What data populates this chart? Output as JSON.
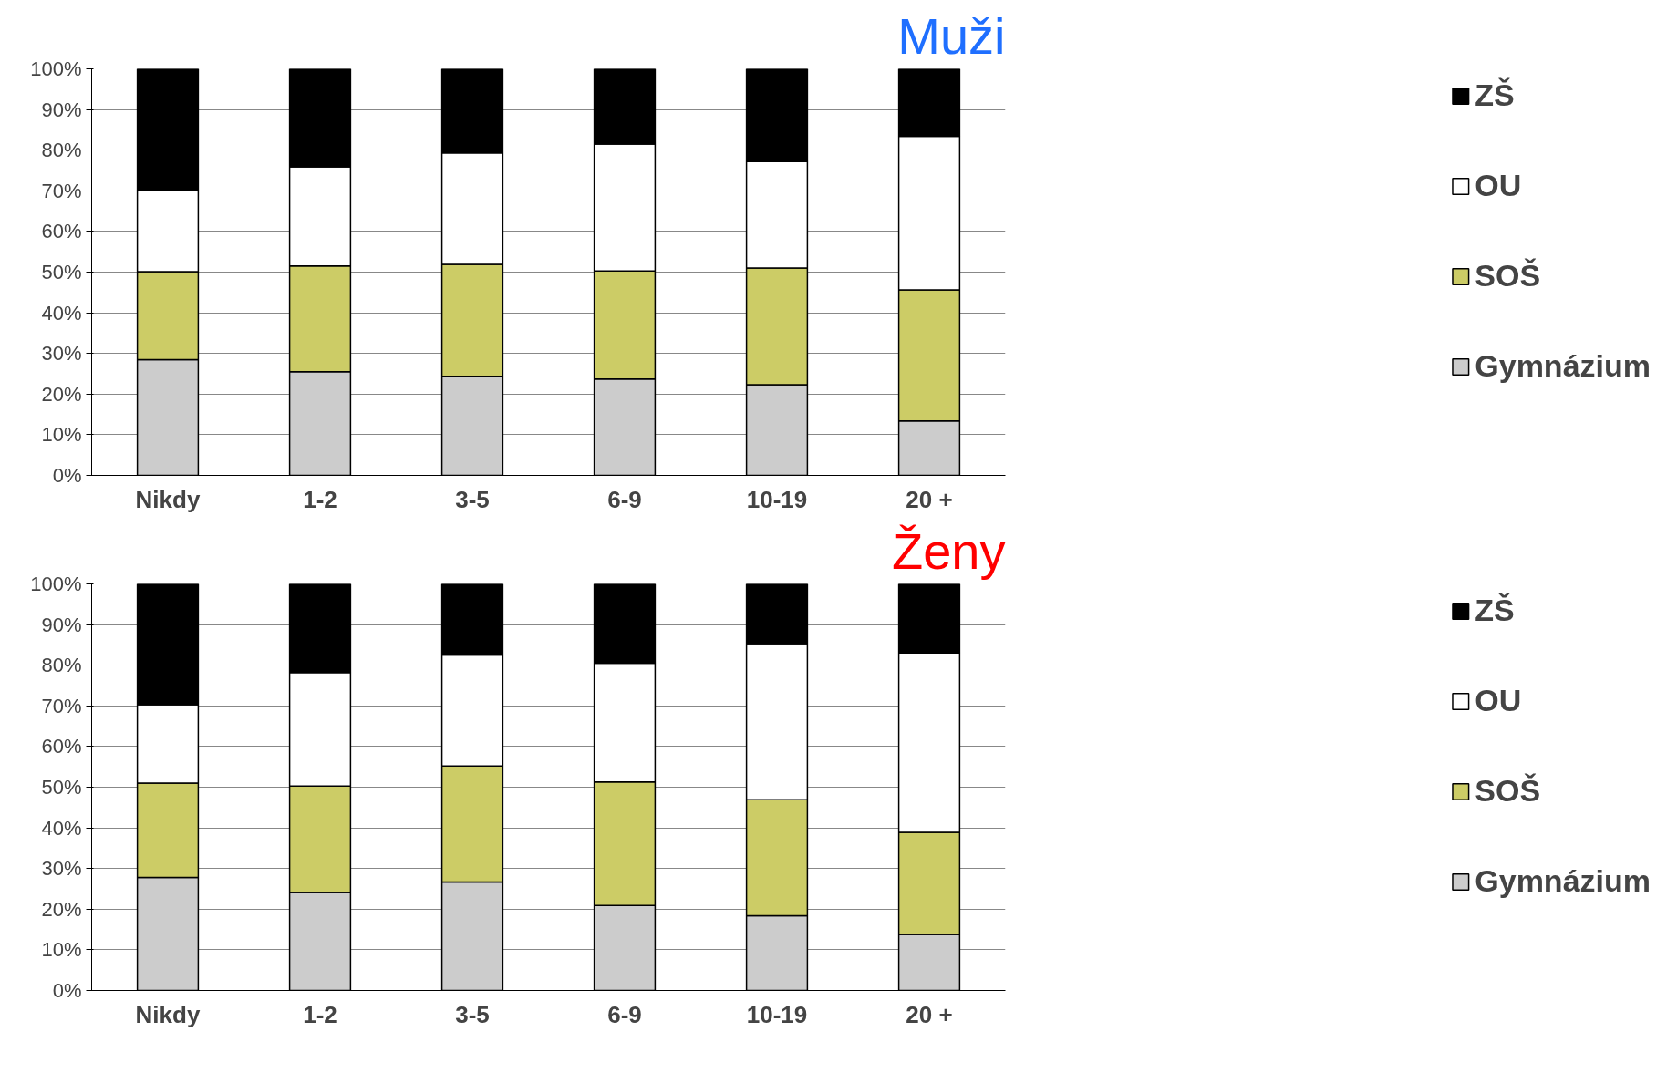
{
  "chart_data": [
    {
      "type": "bar",
      "title": "Muži",
      "stacked": true,
      "legend": "right",
      "grid": "y",
      "categories": [
        "Nikdy",
        "1-2",
        "3-5",
        "6-9",
        "10-19",
        "20 +"
      ],
      "ylim": [
        0,
        100
      ],
      "yticks": [
        {
          "value": 0,
          "label": "0%"
        },
        {
          "value": 10,
          "label": "10%"
        },
        {
          "value": 20,
          "label": "20%"
        },
        {
          "value": 30,
          "label": "30%"
        },
        {
          "value": 40,
          "label": "40%"
        },
        {
          "value": 50,
          "label": "50%"
        },
        {
          "value": 60,
          "label": "60%"
        },
        {
          "value": 70,
          "label": "70%"
        },
        {
          "value": 80,
          "label": "80%"
        },
        {
          "value": 90,
          "label": "90%"
        },
        {
          "value": 100,
          "label": "100%"
        }
      ],
      "series": [
        {
          "name": "Gymnázium",
          "color": "#cccccc",
          "values": [
            28.5,
            25.5,
            24.4,
            23.7,
            22.3,
            13.4
          ]
        },
        {
          "name": "SOŠ",
          "color": "#cccc66",
          "values": [
            21.6,
            26.0,
            27.5,
            26.6,
            28.7,
            32.2
          ]
        },
        {
          "name": "OU",
          "color": "#ffffff",
          "values": [
            20.1,
            24.4,
            27.4,
            31.2,
            26.2,
            37.8
          ]
        },
        {
          "name": "ZŠ",
          "color": "#000000",
          "values": [
            29.8,
            24.1,
            20.7,
            18.5,
            22.8,
            16.6
          ]
        }
      ]
    },
    {
      "type": "bar",
      "title": "Ženy",
      "stacked": true,
      "legend": "right",
      "grid": "y",
      "categories": [
        "Nikdy",
        "1-2",
        "3-5",
        "6-9",
        "10-19",
        "20 +"
      ],
      "ylim": [
        0,
        100
      ],
      "yticks": [
        {
          "value": 0,
          "label": "0%"
        },
        {
          "value": 10,
          "label": "10%"
        },
        {
          "value": 20,
          "label": "20%"
        },
        {
          "value": 30,
          "label": "30%"
        },
        {
          "value": 40,
          "label": "40%"
        },
        {
          "value": 50,
          "label": "50%"
        },
        {
          "value": 60,
          "label": "60%"
        },
        {
          "value": 70,
          "label": "70%"
        },
        {
          "value": 80,
          "label": "80%"
        },
        {
          "value": 90,
          "label": "90%"
        },
        {
          "value": 100,
          "label": "100%"
        }
      ],
      "series": [
        {
          "name": "Gymnázium",
          "color": "#cccccc",
          "values": [
            27.8,
            24.1,
            26.7,
            20.9,
            18.4,
            13.8
          ]
        },
        {
          "name": "SOŠ",
          "color": "#cccc66",
          "values": [
            23.2,
            26.2,
            28.5,
            30.4,
            28.5,
            25.1
          ]
        },
        {
          "name": "OU",
          "color": "#ffffff",
          "values": [
            19.3,
            27.9,
            27.3,
            29.2,
            38.4,
            44.1
          ]
        },
        {
          "name": "ZŠ",
          "color": "#000000",
          "values": [
            29.7,
            21.8,
            17.5,
            19.5,
            14.7,
            17.0
          ]
        }
      ]
    }
  ]
}
